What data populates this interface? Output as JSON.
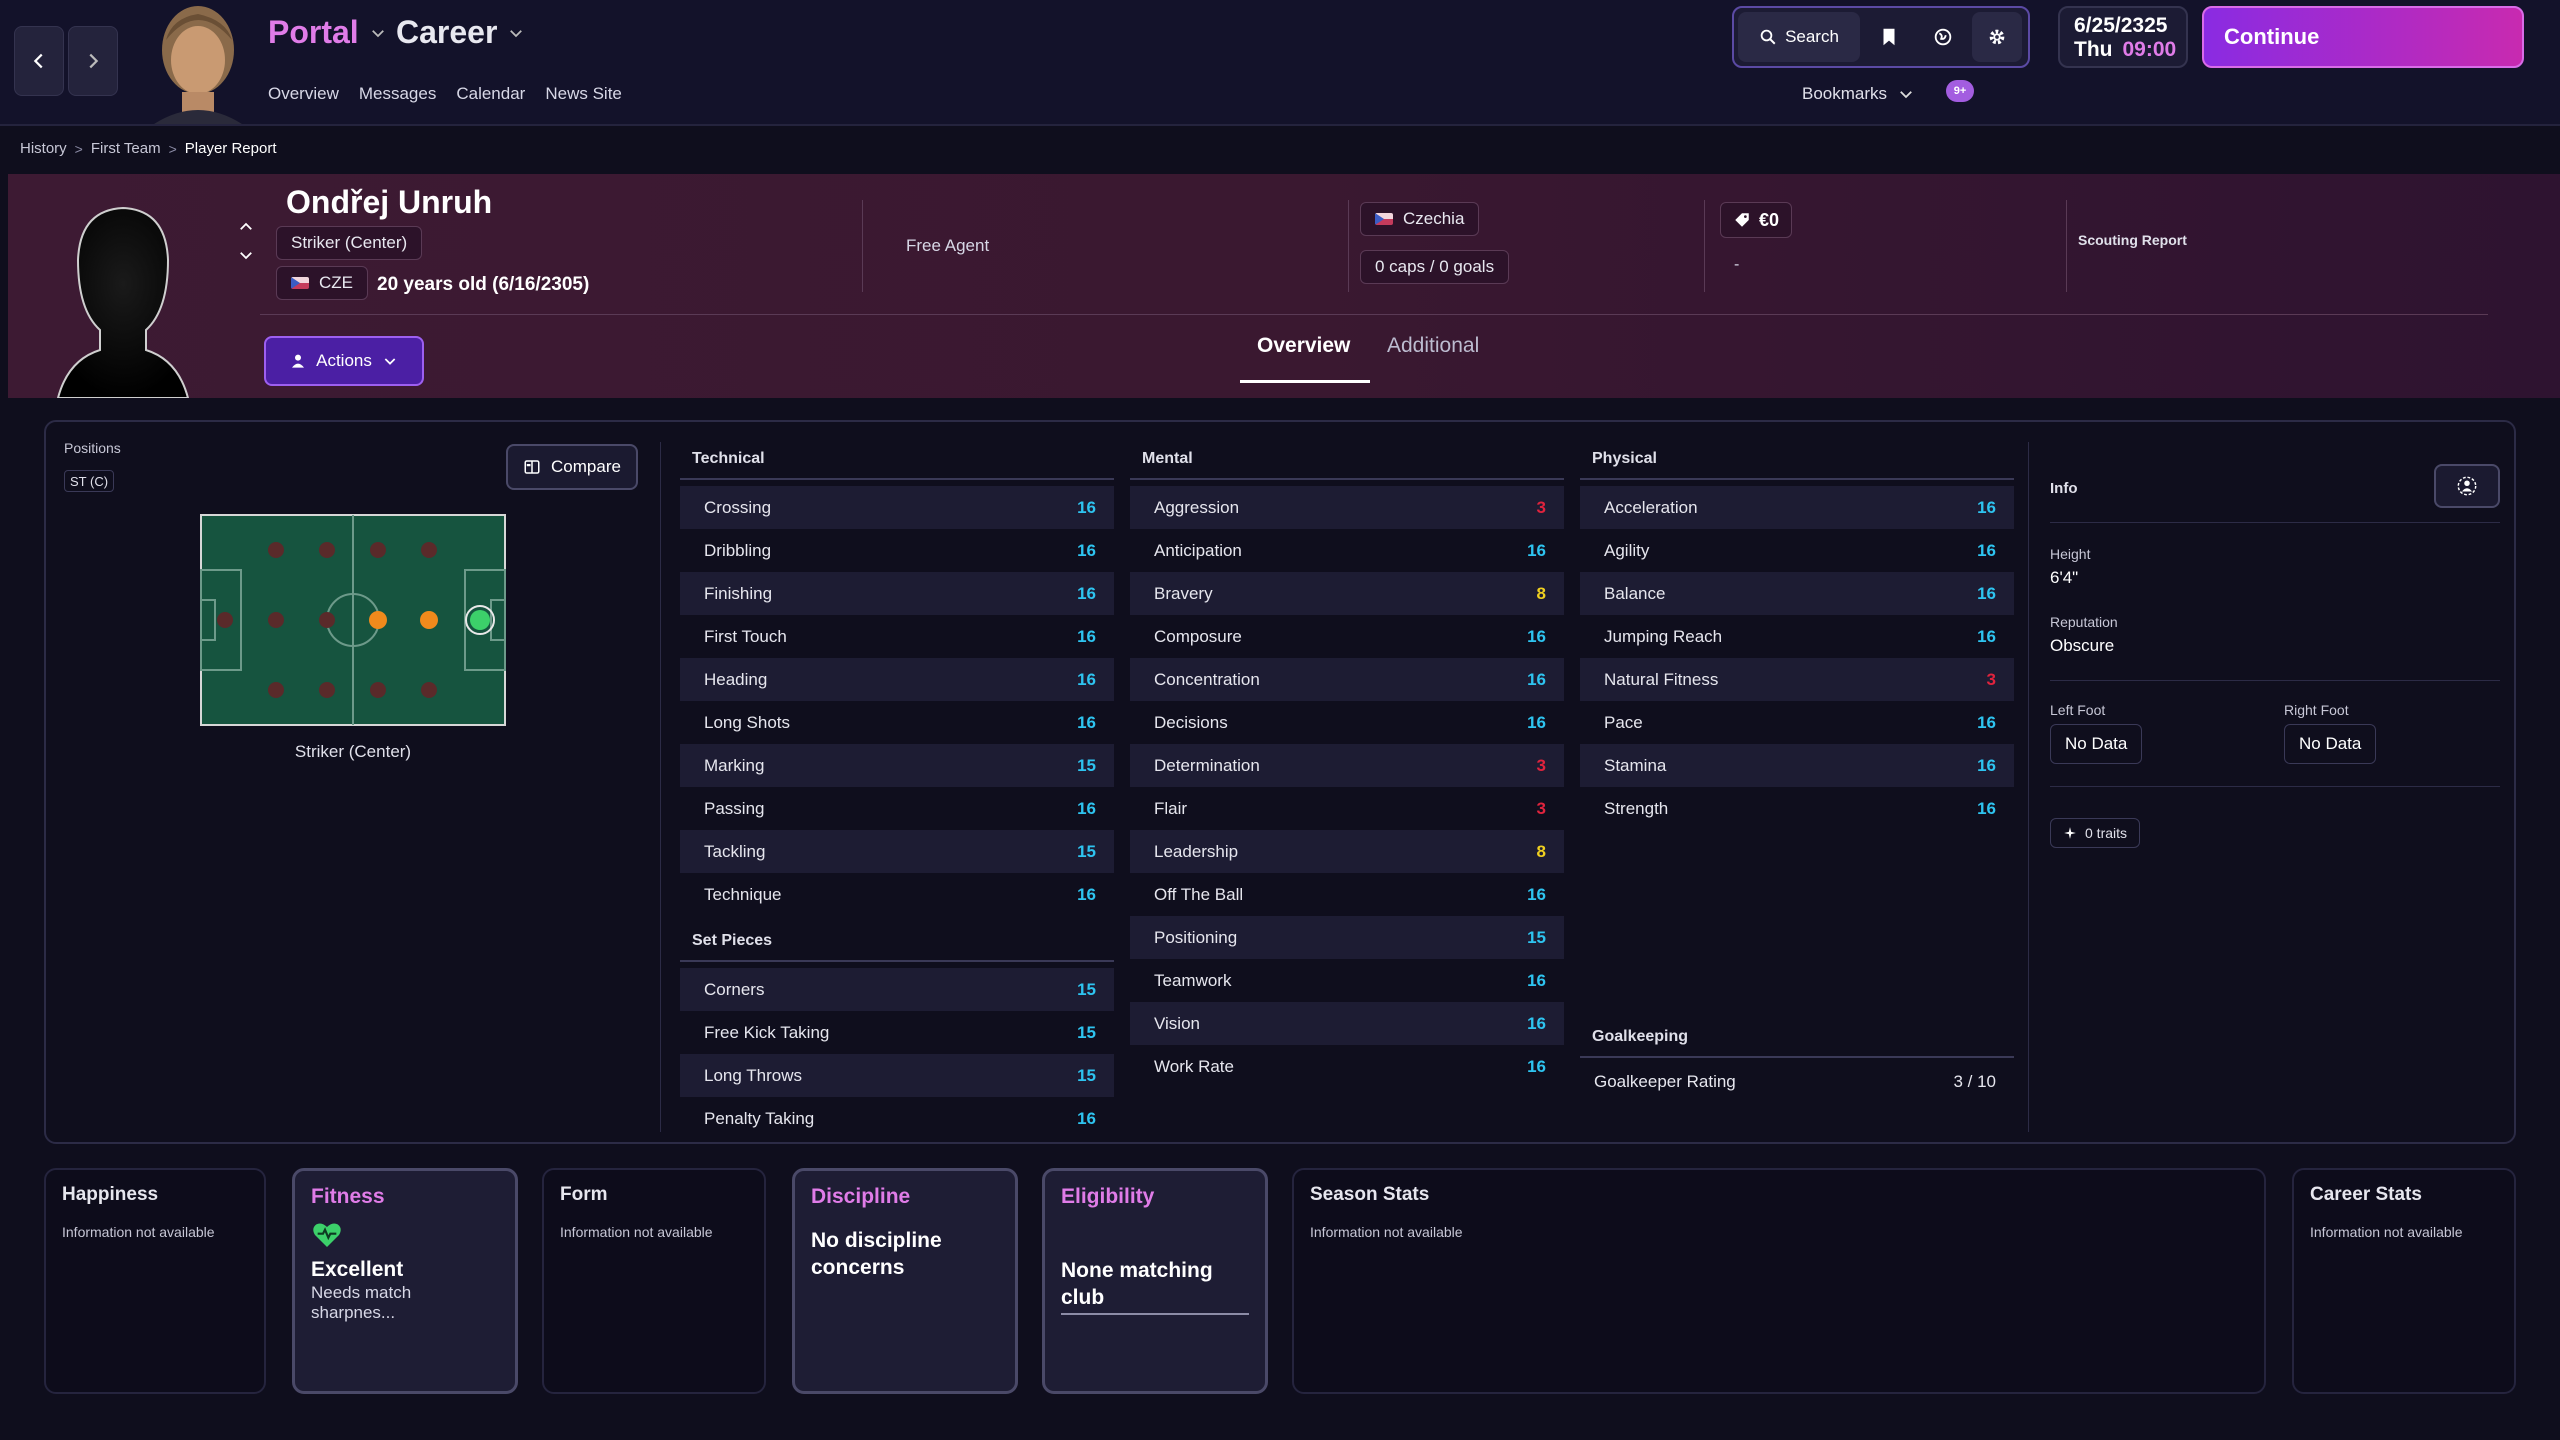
{
  "header": {
    "portal": "Portal",
    "career": "Career",
    "nav": [
      "Overview",
      "Messages",
      "Calendar",
      "News Site"
    ],
    "search": "Search",
    "bookmarks": "Bookmarks",
    "chat_badge": "9+",
    "date": "6/25/2325",
    "weekday": "Thu",
    "time": "09:00",
    "continue": "Continue"
  },
  "breadcrumb": [
    "History",
    "First Team",
    "Player Report"
  ],
  "player": {
    "name": "Ondřej Unruh",
    "position": "Striker (Center)",
    "nation_code": "CZE",
    "age": "20 years old (6/16/2305)",
    "contract": "Free Agent",
    "nationality": "Czechia",
    "caps": "0 caps / 0 goals",
    "value": "€0",
    "value_sub": "-",
    "scouting": "Scouting Report",
    "actions": "Actions"
  },
  "tabs": [
    "Overview",
    "Additional"
  ],
  "positions": {
    "label": "Positions",
    "tag": "ST (C)",
    "compare": "Compare",
    "pitch_label": "Striker (Center)"
  },
  "technical": {
    "title": "Technical",
    "rows": [
      {
        "name": "Crossing",
        "value": "16",
        "tone": "blue"
      },
      {
        "name": "Dribbling",
        "value": "16",
        "tone": "blue"
      },
      {
        "name": "Finishing",
        "value": "16",
        "tone": "blue"
      },
      {
        "name": "First Touch",
        "value": "16",
        "tone": "blue"
      },
      {
        "name": "Heading",
        "value": "16",
        "tone": "blue"
      },
      {
        "name": "Long Shots",
        "value": "16",
        "tone": "blue"
      },
      {
        "name": "Marking",
        "value": "15",
        "tone": "blue"
      },
      {
        "name": "Passing",
        "value": "16",
        "tone": "blue"
      },
      {
        "name": "Tackling",
        "value": "15",
        "tone": "blue"
      },
      {
        "name": "Technique",
        "value": "16",
        "tone": "blue"
      }
    ]
  },
  "set_pieces": {
    "title": "Set Pieces",
    "rows": [
      {
        "name": "Corners",
        "value": "15",
        "tone": "blue"
      },
      {
        "name": "Free Kick Taking",
        "value": "15",
        "tone": "blue"
      },
      {
        "name": "Long Throws",
        "value": "15",
        "tone": "blue"
      },
      {
        "name": "Penalty Taking",
        "value": "16",
        "tone": "blue"
      }
    ]
  },
  "mental": {
    "title": "Mental",
    "rows": [
      {
        "name": "Aggression",
        "value": "3",
        "tone": "red"
      },
      {
        "name": "Anticipation",
        "value": "16",
        "tone": "blue"
      },
      {
        "name": "Bravery",
        "value": "8",
        "tone": "yellow"
      },
      {
        "name": "Composure",
        "value": "16",
        "tone": "blue"
      },
      {
        "name": "Concentration",
        "value": "16",
        "tone": "blue"
      },
      {
        "name": "Decisions",
        "value": "16",
        "tone": "blue"
      },
      {
        "name": "Determination",
        "value": "3",
        "tone": "red"
      },
      {
        "name": "Flair",
        "value": "3",
        "tone": "red"
      },
      {
        "name": "Leadership",
        "value": "8",
        "tone": "yellow"
      },
      {
        "name": "Off The Ball",
        "value": "16",
        "tone": "blue"
      },
      {
        "name": "Positioning",
        "value": "15",
        "tone": "blue"
      },
      {
        "name": "Teamwork",
        "value": "16",
        "tone": "blue"
      },
      {
        "name": "Vision",
        "value": "16",
        "tone": "blue"
      },
      {
        "name": "Work Rate",
        "value": "16",
        "tone": "blue"
      }
    ]
  },
  "physical": {
    "title": "Physical",
    "rows": [
      {
        "name": "Acceleration",
        "value": "16",
        "tone": "blue"
      },
      {
        "name": "Agility",
        "value": "16",
        "tone": "blue"
      },
      {
        "name": "Balance",
        "value": "16",
        "tone": "blue"
      },
      {
        "name": "Jumping Reach",
        "value": "16",
        "tone": "blue"
      },
      {
        "name": "Natural Fitness",
        "value": "3",
        "tone": "red"
      },
      {
        "name": "Pace",
        "value": "16",
        "tone": "blue"
      },
      {
        "name": "Stamina",
        "value": "16",
        "tone": "blue"
      },
      {
        "name": "Strength",
        "value": "16",
        "tone": "blue"
      }
    ]
  },
  "goalkeeping": {
    "title": "Goalkeeping",
    "label": "Goalkeeper Rating",
    "value": "3 / 10"
  },
  "info": {
    "title": "Info",
    "height_label": "Height",
    "height": "6'4\"",
    "reputation_label": "Reputation",
    "reputation": "Obscure",
    "left_foot_label": "Left Foot",
    "left_foot": "No Data",
    "right_foot_label": "Right Foot",
    "right_foot": "No Data",
    "traits": "0 traits"
  },
  "cards": {
    "na": "Information not available",
    "happiness": "Happiness",
    "fitness": "Fitness",
    "fitness_status": "Excellent",
    "fitness_sub": "Needs match sharpnes...",
    "form": "Form",
    "discipline": "Discipline",
    "discipline_status": "No discipline concerns",
    "eligibility": "Eligibility",
    "eligibility_status": "None matching club",
    "season": "Season Stats",
    "career": "Career Stats"
  },
  "colors": {
    "blue": "#2ec4f0",
    "red": "#e0233d",
    "yellow": "#f0d020",
    "accent": "#e07ce8",
    "continue": "#b02ad0"
  }
}
